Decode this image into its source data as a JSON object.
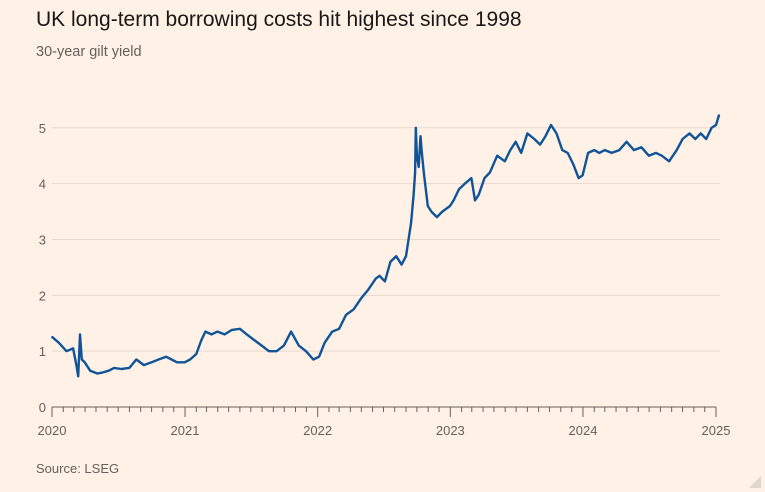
{
  "header": {
    "title": "UK long-term borrowing costs hit highest since 1998",
    "subtitle": "30-year gilt yield"
  },
  "footer": {
    "source": "Source: LSEG"
  },
  "colors": {
    "background": "#fff1e5",
    "line": "#0f5499",
    "grid": "#e6d9ce",
    "text": "#66605c"
  },
  "chart_data": {
    "type": "line",
    "title": "UK long-term borrowing costs hit highest since 1998",
    "subtitle": "30-year gilt yield",
    "xlabel": "",
    "ylabel": "",
    "xlim": [
      "2020-01-01",
      "2025-01-10"
    ],
    "ylim": [
      0,
      5.3
    ],
    "x_ticks": [
      "2020",
      "2021",
      "2022",
      "2023",
      "2024",
      "2025"
    ],
    "y_ticks": [
      0,
      1,
      2,
      3,
      4,
      5
    ],
    "grid": "horizontal",
    "legend": "none",
    "series": [
      {
        "x": [
          "2020-01-02",
          "2020-01-20",
          "2020-02-10",
          "2020-02-28",
          "2020-03-09",
          "2020-03-13",
          "2020-03-18",
          "2020-03-23",
          "2020-03-31",
          "2020-04-15",
          "2020-05-05",
          "2020-05-20",
          "2020-06-05",
          "2020-06-20",
          "2020-07-10",
          "2020-08-01",
          "2020-08-20",
          "2020-09-10",
          "2020-10-01",
          "2020-10-20",
          "2020-11-10",
          "2020-11-25",
          "2020-12-10",
          "2020-12-31",
          "2021-01-15",
          "2021-02-01",
          "2021-02-15",
          "2021-02-26",
          "2021-03-15",
          "2021-03-31",
          "2021-04-20",
          "2021-05-10",
          "2021-06-01",
          "2021-06-20",
          "2021-07-10",
          "2021-07-31",
          "2021-08-20",
          "2021-09-10",
          "2021-09-30",
          "2021-10-20",
          "2021-11-10",
          "2021-11-30",
          "2021-12-20",
          "2022-01-05",
          "2022-01-20",
          "2022-02-10",
          "2022-03-01",
          "2022-03-20",
          "2022-04-10",
          "2022-05-01",
          "2022-05-20",
          "2022-06-10",
          "2022-06-20",
          "2022-07-05",
          "2022-07-20",
          "2022-08-05",
          "2022-08-20",
          "2022-09-01",
          "2022-09-15",
          "2022-09-22",
          "2022-09-26",
          "2022-09-28",
          "2022-10-01",
          "2022-10-06",
          "2022-10-11",
          "2022-10-14",
          "2022-10-20",
          "2022-10-31",
          "2022-11-10",
          "2022-11-25",
          "2022-12-10",
          "2022-12-31",
          "2023-01-10",
          "2023-01-25",
          "2023-02-10",
          "2023-02-28",
          "2023-03-10",
          "2023-03-20",
          "2023-04-05",
          "2023-04-20",
          "2023-05-10",
          "2023-05-31",
          "2023-06-15",
          "2023-06-30",
          "2023-07-15",
          "2023-08-01",
          "2023-08-20",
          "2023-09-05",
          "2023-09-20",
          "2023-10-05",
          "2023-10-20",
          "2023-11-05",
          "2023-11-20",
          "2023-12-05",
          "2023-12-20",
          "2023-12-31",
          "2024-01-15",
          "2024-02-01",
          "2024-02-15",
          "2024-03-01",
          "2024-03-20",
          "2024-04-10",
          "2024-04-30",
          "2024-05-20",
          "2024-06-10",
          "2024-06-30",
          "2024-07-20",
          "2024-08-05",
          "2024-08-25",
          "2024-09-15",
          "2024-10-01",
          "2024-10-20",
          "2024-11-05",
          "2024-11-20",
          "2024-12-05",
          "2024-12-20",
          "2025-01-01",
          "2025-01-09"
        ],
        "values": [
          1.25,
          1.15,
          1.0,
          1.05,
          0.72,
          0.55,
          1.3,
          0.85,
          0.8,
          0.65,
          0.6,
          0.62,
          0.65,
          0.7,
          0.68,
          0.7,
          0.85,
          0.75,
          0.8,
          0.85,
          0.9,
          0.85,
          0.8,
          0.8,
          0.85,
          0.95,
          1.2,
          1.35,
          1.3,
          1.35,
          1.3,
          1.38,
          1.4,
          1.3,
          1.2,
          1.1,
          1.0,
          1.0,
          1.1,
          1.35,
          1.1,
          1.0,
          0.85,
          0.9,
          1.15,
          1.35,
          1.4,
          1.65,
          1.75,
          1.95,
          2.1,
          2.3,
          2.35,
          2.25,
          2.6,
          2.7,
          2.55,
          2.7,
          3.3,
          3.8,
          4.2,
          5.0,
          4.5,
          4.3,
          4.85,
          4.6,
          4.2,
          3.6,
          3.5,
          3.4,
          3.5,
          3.6,
          3.7,
          3.9,
          4.0,
          4.1,
          3.7,
          3.8,
          4.1,
          4.2,
          4.5,
          4.4,
          4.6,
          4.75,
          4.55,
          4.9,
          4.8,
          4.7,
          4.85,
          5.05,
          4.9,
          4.6,
          4.55,
          4.35,
          4.1,
          4.15,
          4.55,
          4.6,
          4.55,
          4.6,
          4.55,
          4.6,
          4.75,
          4.6,
          4.65,
          4.5,
          4.55,
          4.5,
          4.4,
          4.6,
          4.8,
          4.9,
          4.8,
          4.9,
          4.8,
          5.0,
          5.05,
          5.22
        ]
      }
    ]
  }
}
